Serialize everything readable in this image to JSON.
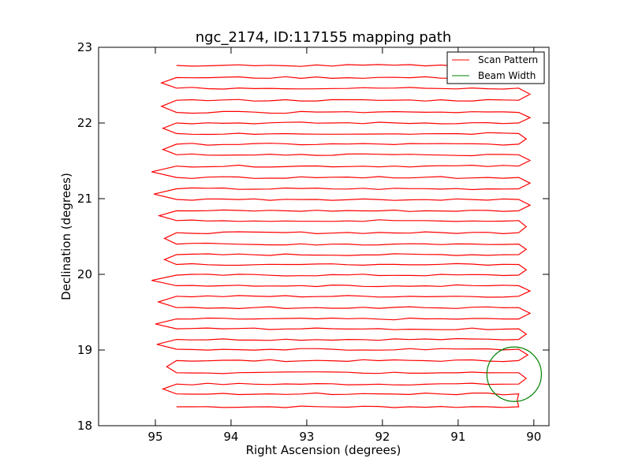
{
  "chart_data": {
    "type": "line",
    "title": "ngc_2174, ID:117155 mapping path",
    "xlabel": "Right Ascension (degrees)",
    "ylabel": "Declination (degrees)",
    "xlim": [
      95.75,
      89.8
    ],
    "ylim": [
      18,
      23
    ],
    "x_ticks": [
      "95",
      "94",
      "93",
      "92",
      "91",
      "90"
    ],
    "y_ticks": [
      "18",
      "19",
      "20",
      "21",
      "22",
      "23"
    ],
    "grid": false,
    "legend": {
      "placement": "top-right",
      "entries": [
        "Scan Pattern",
        "Beam Width"
      ]
    },
    "colors": {
      "scan": "#ff0000",
      "beam": "#008000"
    },
    "series": [
      {
        "name": "Scan Pattern",
        "scan_rows_dec": [
          18.25,
          18.42,
          18.55,
          18.7,
          18.86,
          19.01,
          19.14,
          19.28,
          19.41,
          19.56,
          19.71,
          19.85,
          19.99,
          20.13,
          20.26,
          20.4,
          20.55,
          20.71,
          20.84,
          20.99,
          21.13,
          21.28,
          21.43,
          21.58,
          21.72,
          21.86,
          22.0,
          22.14,
          22.3,
          22.46,
          22.6,
          22.76
        ],
        "west_turn_ra": [
          90.22,
          90.05,
          90.1,
          90.05,
          90.08,
          90.05,
          90.1,
          89.95,
          90.05,
          90.1,
          90.05,
          89.8,
          90.1,
          90.05,
          90.1,
          90.05,
          90.1,
          90.02,
          90.05,
          89.98,
          90.05,
          89.9,
          90.05,
          89.98,
          90.1,
          89.9,
          90.05,
          89.9,
          90.05,
          90.1,
          90.0,
          90.2
        ],
        "east_turn_ra": [
          94.88,
          94.9,
          94.95,
          94.85,
          94.92,
          94.98,
          94.85,
          95.0,
          95.02,
          94.96,
          94.92,
          95.05,
          94.9,
          94.88,
          94.95,
          94.88,
          94.9,
          94.95,
          94.95,
          95.02,
          94.92,
          95.05,
          94.88,
          94.9,
          94.92,
          94.9,
          94.9,
          94.92,
          94.9,
          94.92,
          94.95,
          94.8
        ]
      },
      {
        "name": "Beam Width",
        "center_ra": 90.26,
        "center_dec": 18.68,
        "radius_deg": 0.36
      }
    ]
  }
}
